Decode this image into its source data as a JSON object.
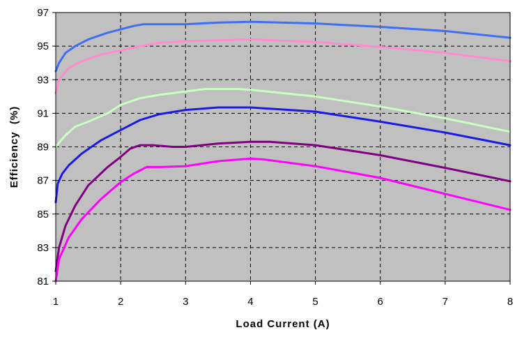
{
  "chart_data": {
    "type": "line",
    "title": "",
    "xlabel": "Load Current (A)",
    "ylabel": "Efficiency  (%)",
    "xlim": [
      1,
      8
    ],
    "ylim": [
      81,
      97
    ],
    "xticks": [
      "1",
      "2",
      "3",
      "4",
      "5",
      "6",
      "7",
      "8"
    ],
    "yticks": [
      "81",
      "83",
      "85",
      "87",
      "89",
      "91",
      "93",
      "95",
      "97"
    ],
    "xtick_values": [
      1,
      2,
      3,
      4,
      5,
      6,
      7,
      8
    ],
    "ytick_values": [
      81,
      83,
      85,
      87,
      89,
      91,
      93,
      95,
      97
    ],
    "grid": "dashed",
    "plot_background": "#c0c0c0",
    "legend": "none",
    "series": [
      {
        "color": "#3f6ff0",
        "x": [
          1.0,
          1.05,
          1.15,
          1.3,
          1.5,
          1.8,
          2.0,
          2.2,
          2.35,
          2.5,
          3.0,
          3.5,
          4.0,
          5.0,
          6.0,
          7.0,
          8.0
        ],
        "y": [
          93.5,
          94.0,
          94.6,
          95.0,
          95.4,
          95.8,
          96.0,
          96.2,
          96.3,
          96.3,
          96.3,
          96.4,
          96.45,
          96.35,
          96.15,
          95.9,
          95.5
        ]
      },
      {
        "color": "#ff8ccf",
        "x": [
          1.0,
          1.05,
          1.2,
          1.4,
          1.7,
          2.0,
          2.3,
          2.6,
          3.0,
          3.5,
          4.0,
          5.0,
          6.0,
          7.0,
          8.0
        ],
        "y": [
          92.2,
          93.0,
          93.7,
          94.1,
          94.5,
          94.75,
          95.0,
          95.2,
          95.3,
          95.35,
          95.4,
          95.25,
          94.95,
          94.6,
          94.1
        ]
      },
      {
        "color": "#c8ffc0",
        "x": [
          1.0,
          1.15,
          1.3,
          1.5,
          1.8,
          2.0,
          2.3,
          2.6,
          3.0,
          3.3,
          3.8,
          4.0,
          5.0,
          6.0,
          7.0,
          8.0
        ],
        "y": [
          89.0,
          89.7,
          90.2,
          90.5,
          91.0,
          91.5,
          91.9,
          92.1,
          92.3,
          92.45,
          92.45,
          92.4,
          92.0,
          91.4,
          90.7,
          89.9
        ]
      },
      {
        "color": "#1a1ae6",
        "x": [
          1.0,
          1.03,
          1.1,
          1.2,
          1.4,
          1.7,
          2.0,
          2.3,
          2.6,
          3.0,
          3.5,
          4.0,
          5.0,
          6.0,
          7.0,
          8.0
        ],
        "y": [
          85.7,
          86.8,
          87.4,
          87.9,
          88.6,
          89.4,
          90.0,
          90.6,
          90.95,
          91.2,
          91.35,
          91.35,
          91.1,
          90.5,
          89.85,
          89.1
        ]
      },
      {
        "color": "#800080",
        "x": [
          1.0,
          1.05,
          1.15,
          1.3,
          1.5,
          1.8,
          2.0,
          2.15,
          2.3,
          2.5,
          2.8,
          3.0,
          3.5,
          4.0,
          4.3,
          5.0,
          6.0,
          7.0,
          8.0
        ],
        "y": [
          81.6,
          83.0,
          84.3,
          85.5,
          86.7,
          87.8,
          88.4,
          88.9,
          89.1,
          89.1,
          89.0,
          89.0,
          89.2,
          89.3,
          89.3,
          89.1,
          88.5,
          87.75,
          86.95
        ]
      },
      {
        "color": "#ff00ff",
        "x": [
          1.0,
          1.05,
          1.2,
          1.4,
          1.7,
          2.0,
          2.2,
          2.4,
          2.6,
          3.0,
          3.5,
          4.0,
          4.2,
          5.0,
          6.0,
          7.0,
          8.0
        ],
        "y": [
          81.0,
          82.3,
          83.6,
          84.7,
          85.9,
          86.9,
          87.4,
          87.8,
          87.8,
          87.85,
          88.15,
          88.3,
          88.25,
          87.85,
          87.15,
          86.2,
          85.25
        ]
      }
    ]
  }
}
